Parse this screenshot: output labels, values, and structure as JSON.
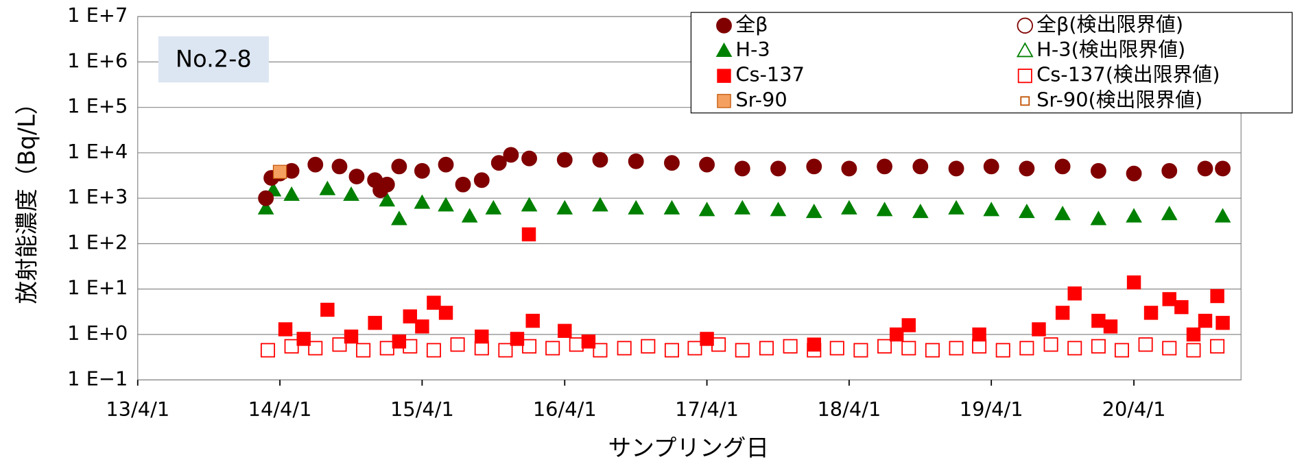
{
  "chart_data": {
    "type": "scatter",
    "annotation": "No.2-8",
    "xlabel": "サンプリング日",
    "ylabel": "放射能濃度（Bq/L）",
    "log_y": true,
    "grid": true,
    "legend": "upper right",
    "xlim": [
      "2013-04-01",
      "2021-01-01"
    ],
    "xticks": [
      {
        "value": "2013-04-01",
        "label": "13/4/1"
      },
      {
        "value": "2014-04-01",
        "label": "14/4/1"
      },
      {
        "value": "2015-04-01",
        "label": "15/4/1"
      },
      {
        "value": "2016-04-01",
        "label": "16/4/1"
      },
      {
        "value": "2017-04-01",
        "label": "17/4/1"
      },
      {
        "value": "2018-04-01",
        "label": "18/4/1"
      },
      {
        "value": "2019-04-01",
        "label": "19/4/1"
      },
      {
        "value": "2020-04-01",
        "label": "20/4/1"
      }
    ],
    "ylim": [
      0.1,
      10000000
    ],
    "yticks": [
      {
        "value": 0.1,
        "label": "1 E−1"
      },
      {
        "value": 1,
        "label": "1 E+0"
      },
      {
        "value": 10,
        "label": "1 E+1"
      },
      {
        "value": 100,
        "label": "1 E+2"
      },
      {
        "value": 1000,
        "label": "1 E+3"
      },
      {
        "value": 10000,
        "label": "1 E+4"
      },
      {
        "value": 100000,
        "label": "1 E+5"
      },
      {
        "value": 1000000,
        "label": "1 E+6"
      },
      {
        "value": 10000000,
        "label": "1 E+7"
      }
    ],
    "series": [
      {
        "name": "全β",
        "color": "#800000",
        "marker": "circle",
        "filled": true,
        "x": [
          "2014-02-24",
          "2014-03-10",
          "2014-04-01",
          "2014-05-01",
          "2014-07-01",
          "2014-09-01",
          "2014-10-15",
          "2014-12-01",
          "2014-12-15",
          "2015-01-01",
          "2015-02-01",
          "2015-04-01",
          "2015-06-01",
          "2015-07-15",
          "2015-09-01",
          "2015-10-15",
          "2015-11-15",
          "2016-01-01",
          "2016-04-01",
          "2016-07-01",
          "2016-10-01",
          "2017-01-01",
          "2017-04-01",
          "2017-07-01",
          "2017-10-01",
          "2018-01-01",
          "2018-04-01",
          "2018-07-01",
          "2018-10-01",
          "2019-01-01",
          "2019-04-01",
          "2019-07-01",
          "2019-10-01",
          "2020-01-01",
          "2020-04-01",
          "2020-07-01",
          "2020-10-01",
          "2020-11-15"
        ],
        "values": [
          1000,
          2800,
          3500,
          4000,
          5500,
          5000,
          3000,
          2500,
          1500,
          2000,
          5000,
          4000,
          5500,
          2000,
          2500,
          6000,
          9000,
          7500,
          7000,
          7000,
          6500,
          6000,
          5500,
          4500,
          4500,
          5000,
          4500,
          5000,
          5000,
          4500,
          5000,
          4500,
          5000,
          4000,
          3500,
          4000,
          4500,
          4500
        ]
      },
      {
        "name": "全β(検出限界値)",
        "color": "#800000",
        "marker": "circle",
        "filled": false,
        "x": [],
        "values": []
      },
      {
        "name": "H-3",
        "color": "#008000",
        "marker": "triangle",
        "filled": true,
        "x": [
          "2014-02-24",
          "2014-03-15",
          "2014-05-01",
          "2014-08-01",
          "2014-10-01",
          "2015-01-01",
          "2015-02-01",
          "2015-04-01",
          "2015-06-01",
          "2015-08-01",
          "2015-10-01",
          "2016-01-01",
          "2016-04-01",
          "2016-07-01",
          "2016-10-01",
          "2017-01-01",
          "2017-04-01",
          "2017-07-01",
          "2017-10-01",
          "2018-01-01",
          "2018-04-01",
          "2018-07-01",
          "2018-10-01",
          "2019-01-01",
          "2019-04-01",
          "2019-07-01",
          "2019-10-01",
          "2020-01-01",
          "2020-04-01",
          "2020-07-01",
          "2020-11-15"
        ],
        "values": [
          600,
          1500,
          1200,
          1600,
          1200,
          900,
          350,
          800,
          700,
          400,
          600,
          700,
          600,
          700,
          600,
          600,
          550,
          600,
          550,
          500,
          600,
          550,
          500,
          600,
          550,
          500,
          450,
          350,
          400,
          450,
          400
        ]
      },
      {
        "name": "H-3(検出限界値)",
        "color": "#008000",
        "marker": "triangle",
        "filled": false,
        "x": [],
        "values": []
      },
      {
        "name": "Cs-137",
        "color": "#ff0000",
        "marker": "square",
        "filled": true,
        "x": [
          "2014-04-15",
          "2014-06-01",
          "2014-08-01",
          "2014-10-01",
          "2014-12-01",
          "2015-02-01",
          "2015-03-01",
          "2015-04-01",
          "2015-05-01",
          "2015-06-01",
          "2015-09-01",
          "2015-12-01",
          "2015-12-31",
          "2016-01-10",
          "2016-04-01",
          "2016-06-01",
          "2017-04-01",
          "2018-01-01",
          "2018-08-01",
          "2018-09-01",
          "2019-03-01",
          "2019-08-01",
          "2019-10-01",
          "2019-11-01",
          "2020-01-01",
          "2020-02-01",
          "2020-04-01",
          "2020-05-15",
          "2020-07-01",
          "2020-08-01",
          "2020-09-01",
          "2020-10-01",
          "2020-11-01",
          "2020-11-15"
        ],
        "values": [
          1.3,
          0.8,
          3.5,
          0.9,
          1.8,
          0.7,
          2.5,
          1.5,
          5,
          3,
          0.9,
          0.8,
          160,
          2,
          1.2,
          0.7,
          0.8,
          0.6,
          1.0,
          1.6,
          1.0,
          1.3,
          3,
          8,
          2,
          1.5,
          14,
          3,
          6,
          4,
          1.0,
          2,
          7,
          1.8
        ]
      },
      {
        "name": "Cs-137(検出限界値)",
        "color": "#ff0000",
        "marker": "square",
        "filled": false,
        "x": [
          "2014-03-01",
          "2014-05-01",
          "2014-07-01",
          "2014-09-01",
          "2014-11-01",
          "2015-01-01",
          "2015-03-01",
          "2015-05-01",
          "2015-07-01",
          "2015-09-01",
          "2015-11-01",
          "2016-01-01",
          "2016-03-01",
          "2016-05-01",
          "2016-07-01",
          "2016-09-01",
          "2016-11-01",
          "2017-01-01",
          "2017-03-01",
          "2017-05-01",
          "2017-07-01",
          "2017-09-01",
          "2017-11-01",
          "2018-01-01",
          "2018-03-01",
          "2018-05-01",
          "2018-07-01",
          "2018-09-01",
          "2018-11-01",
          "2019-01-01",
          "2019-03-01",
          "2019-05-01",
          "2019-07-01",
          "2019-09-01",
          "2019-11-01",
          "2020-01-01",
          "2020-03-01",
          "2020-05-01",
          "2020-07-01",
          "2020-09-01",
          "2020-11-01"
        ],
        "values": [
          0.45,
          0.55,
          0.5,
          0.6,
          0.45,
          0.5,
          0.55,
          0.45,
          0.6,
          0.5,
          0.45,
          0.55,
          0.5,
          0.6,
          0.45,
          0.5,
          0.55,
          0.45,
          0.5,
          0.6,
          0.45,
          0.5,
          0.55,
          0.45,
          0.5,
          0.45,
          0.55,
          0.5,
          0.45,
          0.5,
          0.55,
          0.45,
          0.5,
          0.6,
          0.5,
          0.55,
          0.45,
          0.6,
          0.5,
          0.45,
          0.55
        ]
      },
      {
        "name": "Sr-90",
        "color": "#c05000",
        "fill": "#f4a060",
        "marker": "square",
        "filled": true,
        "x": [
          "2014-04-01"
        ],
        "values": [
          3800
        ]
      },
      {
        "name": "Sr-90(検出限界値)",
        "color": "#c05000",
        "marker": "square",
        "filled": false,
        "small": true,
        "x": [],
        "values": []
      }
    ]
  }
}
